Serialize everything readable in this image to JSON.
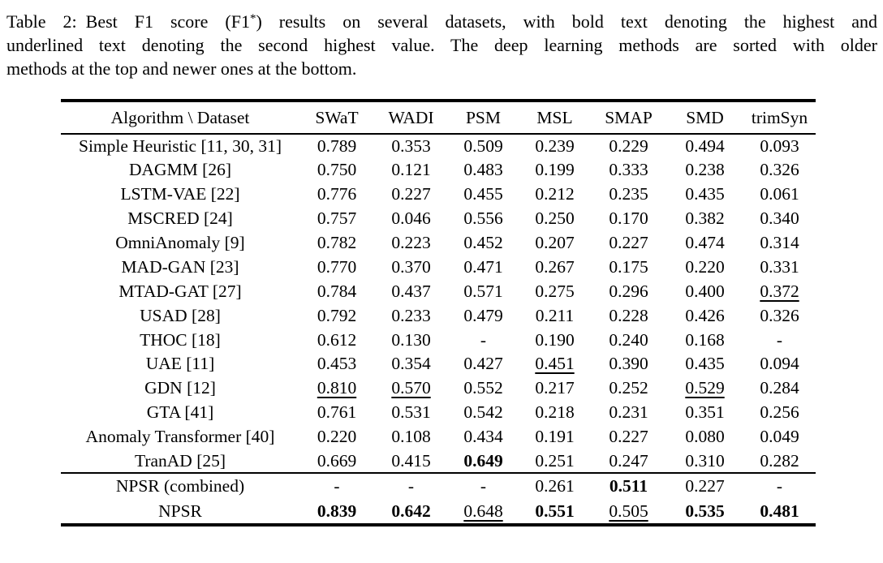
{
  "caption": {
    "line1_pre": "Table 2: Best F1 score (F1",
    "line1_sup": "*",
    "line1_post": ") results on several datasets, with bold text denoting the highest and",
    "line2": "underlined text denoting the second highest value. The deep learning methods are sorted with older",
    "line3": "methods at the top and newer ones at the bottom."
  },
  "style_legend": {
    "n": "normal",
    "b": "bold-highest",
    "u": "underline-second-highest"
  },
  "table": {
    "header": [
      "Algorithm \\ Dataset",
      "SWaT",
      "WADI",
      "PSM",
      "MSL",
      "SMAP",
      "SMD",
      "trimSyn"
    ],
    "main_rows": [
      {
        "algorithm": "Simple Heuristic [11, 30, 31]",
        "values": [
          "0.789",
          "0.353",
          "0.509",
          "0.239",
          "0.229",
          "0.494",
          "0.093"
        ],
        "styles": [
          "n",
          "n",
          "n",
          "n",
          "n",
          "n",
          "n"
        ]
      },
      {
        "algorithm": "DAGMM [26]",
        "values": [
          "0.750",
          "0.121",
          "0.483",
          "0.199",
          "0.333",
          "0.238",
          "0.326"
        ],
        "styles": [
          "n",
          "n",
          "n",
          "n",
          "n",
          "n",
          "n"
        ]
      },
      {
        "algorithm": "LSTM-VAE [22]",
        "values": [
          "0.776",
          "0.227",
          "0.455",
          "0.212",
          "0.235",
          "0.435",
          "0.061"
        ],
        "styles": [
          "n",
          "n",
          "n",
          "n",
          "n",
          "n",
          "n"
        ]
      },
      {
        "algorithm": "MSCRED [24]",
        "values": [
          "0.757",
          "0.046",
          "0.556",
          "0.250",
          "0.170",
          "0.382",
          "0.340"
        ],
        "styles": [
          "n",
          "n",
          "n",
          "n",
          "n",
          "n",
          "n"
        ]
      },
      {
        "algorithm": "OmniAnomaly [9]",
        "values": [
          "0.782",
          "0.223",
          "0.452",
          "0.207",
          "0.227",
          "0.474",
          "0.314"
        ],
        "styles": [
          "n",
          "n",
          "n",
          "n",
          "n",
          "n",
          "n"
        ]
      },
      {
        "algorithm": "MAD-GAN [23]",
        "values": [
          "0.770",
          "0.370",
          "0.471",
          "0.267",
          "0.175",
          "0.220",
          "0.331"
        ],
        "styles": [
          "n",
          "n",
          "n",
          "n",
          "n",
          "n",
          "n"
        ]
      },
      {
        "algorithm": "MTAD-GAT [27]",
        "values": [
          "0.784",
          "0.437",
          "0.571",
          "0.275",
          "0.296",
          "0.400",
          "0.372"
        ],
        "styles": [
          "n",
          "n",
          "n",
          "n",
          "n",
          "n",
          "u"
        ]
      },
      {
        "algorithm": "USAD [28]",
        "values": [
          "0.792",
          "0.233",
          "0.479",
          "0.211",
          "0.228",
          "0.426",
          "0.326"
        ],
        "styles": [
          "n",
          "n",
          "n",
          "n",
          "n",
          "n",
          "n"
        ]
      },
      {
        "algorithm": "THOC [18]",
        "values": [
          "0.612",
          "0.130",
          "-",
          "0.190",
          "0.240",
          "0.168",
          "-"
        ],
        "styles": [
          "n",
          "n",
          "n",
          "n",
          "n",
          "n",
          "n"
        ]
      },
      {
        "algorithm": "UAE [11]",
        "values": [
          "0.453",
          "0.354",
          "0.427",
          "0.451",
          "0.390",
          "0.435",
          "0.094"
        ],
        "styles": [
          "n",
          "n",
          "n",
          "u",
          "n",
          "n",
          "n"
        ]
      },
      {
        "algorithm": "GDN [12]",
        "values": [
          "0.810",
          "0.570",
          "0.552",
          "0.217",
          "0.252",
          "0.529",
          "0.284"
        ],
        "styles": [
          "u",
          "u",
          "n",
          "n",
          "n",
          "u",
          "n"
        ]
      },
      {
        "algorithm": "GTA [41]",
        "values": [
          "0.761",
          "0.531",
          "0.542",
          "0.218",
          "0.231",
          "0.351",
          "0.256"
        ],
        "styles": [
          "n",
          "n",
          "n",
          "n",
          "n",
          "n",
          "n"
        ]
      },
      {
        "algorithm": "Anomaly Transformer [40]",
        "values": [
          "0.220",
          "0.108",
          "0.434",
          "0.191",
          "0.227",
          "0.080",
          "0.049"
        ],
        "styles": [
          "n",
          "n",
          "n",
          "n",
          "n",
          "n",
          "n"
        ]
      },
      {
        "algorithm": "TranAD [25]",
        "values": [
          "0.669",
          "0.415",
          "0.649",
          "0.251",
          "0.247",
          "0.310",
          "0.282"
        ],
        "styles": [
          "n",
          "n",
          "b",
          "n",
          "n",
          "n",
          "n"
        ]
      }
    ],
    "footer_rows": [
      {
        "algorithm": "NPSR (combined)",
        "values": [
          "-",
          "-",
          "-",
          "0.261",
          "0.511",
          "0.227",
          "-"
        ],
        "styles": [
          "n",
          "n",
          "n",
          "n",
          "b",
          "n",
          "n"
        ]
      },
      {
        "algorithm": "NPSR",
        "values": [
          "0.839",
          "0.642",
          "0.648",
          "0.551",
          "0.505",
          "0.535",
          "0.481"
        ],
        "styles": [
          "b",
          "b",
          "u",
          "b",
          "u",
          "b",
          "b"
        ]
      }
    ]
  }
}
